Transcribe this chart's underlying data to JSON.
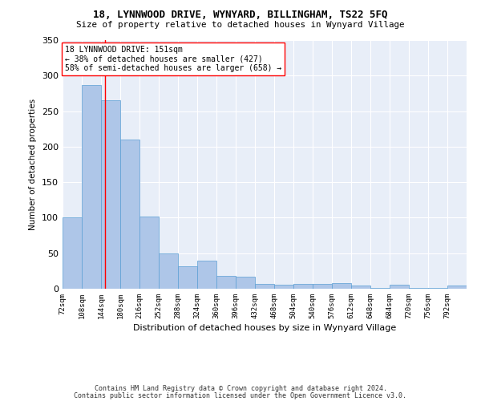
{
  "title": "18, LYNNWOOD DRIVE, WYNYARD, BILLINGHAM, TS22 5FQ",
  "subtitle": "Size of property relative to detached houses in Wynyard Village",
  "xlabel": "Distribution of detached houses by size in Wynyard Village",
  "ylabel": "Number of detached properties",
  "bar_color": "#aec6e8",
  "bar_edge_color": "#5a9fd4",
  "background_color": "#e8eef8",
  "grid_color": "#ffffff",
  "annotation_text": "18 LYNNWOOD DRIVE: 151sqm\n← 38% of detached houses are smaller (427)\n58% of semi-detached houses are larger (658) →",
  "vline_x": 151,
  "bins": [
    72,
    108,
    144,
    180,
    216,
    252,
    288,
    324,
    360,
    396,
    432,
    468,
    504,
    540,
    576,
    612,
    648,
    684,
    720,
    756,
    792
  ],
  "bin_labels": [
    "72sqm",
    "108sqm",
    "144sqm",
    "180sqm",
    "216sqm",
    "252sqm",
    "288sqm",
    "324sqm",
    "360sqm",
    "396sqm",
    "432sqm",
    "468sqm",
    "504sqm",
    "540sqm",
    "576sqm",
    "612sqm",
    "648sqm",
    "684sqm",
    "720sqm",
    "756sqm",
    "792sqm"
  ],
  "heights": [
    100,
    287,
    265,
    210,
    102,
    50,
    32,
    40,
    18,
    17,
    7,
    6,
    7,
    7,
    8,
    5,
    1,
    6,
    1,
    1,
    4
  ],
  "ylim": [
    0,
    350
  ],
  "yticks": [
    0,
    50,
    100,
    150,
    200,
    250,
    300,
    350
  ],
  "footer1": "Contains HM Land Registry data © Crown copyright and database right 2024.",
  "footer2": "Contains public sector information licensed under the Open Government Licence v3.0."
}
